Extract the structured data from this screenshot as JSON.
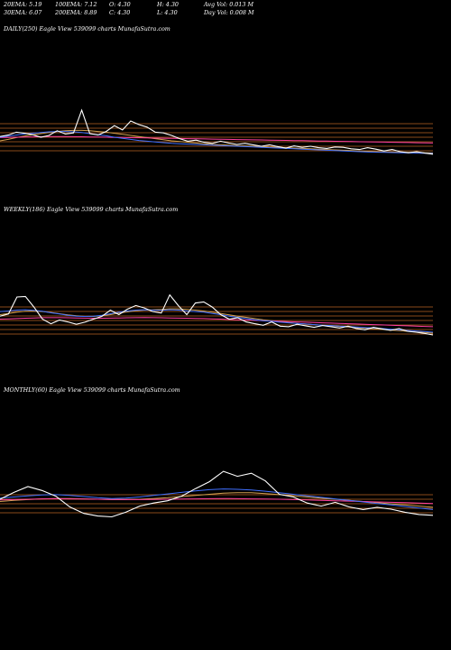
{
  "stats": {
    "ema20": "20EMA: 5.19",
    "ema100": "100EMA: 7.12",
    "open": "O: 4.30",
    "high": "H: 4.30",
    "avgvol": "Avg Vol: 0.013 M",
    "ema30": "30EMA: 6.07",
    "ema200": "200EMA: 8.89",
    "close": "C: 4.30",
    "low": "L: 4.30",
    "dayvol": "Day Vol: 0.008 M"
  },
  "panels": {
    "daily": {
      "label": "DAILY(250) Eagle   View  539099 charts MunafaSutra.com"
    },
    "weekly": {
      "label": "WEEKLY(186) Eagle   View  539099 charts MunafaSutra.com"
    },
    "monthly": {
      "label": "MONTHLY(60) Eagle   View  539099 charts MunafaSutra.com"
    }
  },
  "colors": {
    "background": "#000000",
    "price": "#ffffff",
    "ema_blue": "#3f6fff",
    "ema_pink": "#ff3fa0",
    "ema_orange": "#d2a050",
    "band": "#8a4a1a"
  },
  "chart_data": [
    {
      "type": "line",
      "panel": "daily",
      "series": [
        {
          "values": [
            9.2,
            9.6,
            10.4,
            10.1,
            9.7,
            9.0,
            9.5,
            10.8,
            9.9,
            10.2,
            16.5,
            10.0,
            9.6,
            10.6,
            12.2,
            11.0,
            13.5,
            12.5,
            11.8,
            10.4,
            10.2,
            9.5,
            8.6,
            7.9,
            8.2,
            7.6,
            7.3,
            7.9,
            7.4,
            7.0,
            7.3,
            6.9,
            6.5,
            6.9,
            6.4,
            6.0,
            6.6,
            6.2,
            6.5,
            6.1,
            5.9,
            6.3,
            6.2,
            5.8,
            5.6,
            6.1,
            5.7,
            5.2,
            5.6,
            5.0,
            4.7,
            5.0,
            4.6,
            4.3
          ]
        },
        {
          "values": [
            9.0,
            9.3,
            9.6,
            9.9,
            10.1,
            10.3,
            10.5,
            10.6,
            10.6,
            10.5,
            10.3,
            10.0,
            9.7,
            9.4,
            9.0,
            8.7,
            8.4,
            8.1,
            7.9,
            7.7,
            7.5,
            7.3,
            7.2,
            7.1,
            7.0,
            6.9,
            6.8,
            6.7,
            6.6,
            6.5,
            6.4,
            6.3,
            6.2,
            6.1,
            6.0,
            5.9,
            5.8,
            5.7,
            5.6,
            5.5,
            5.4,
            5.3,
            5.2,
            5.1,
            5.0,
            4.9,
            4.85,
            4.8,
            4.75,
            4.7,
            4.65,
            4.6,
            4.55,
            4.5
          ]
        },
        {
          "values": [
            8.9,
            8.95,
            9.0,
            9.05,
            9.1,
            9.15,
            9.2,
            9.2,
            9.18,
            9.15,
            9.12,
            9.08,
            9.04,
            9.0,
            8.96,
            8.92,
            8.88,
            8.84,
            8.8,
            8.76,
            8.72,
            8.68,
            8.64,
            8.6,
            8.56,
            8.52,
            8.48,
            8.44,
            8.4,
            8.36,
            8.32,
            8.28,
            8.24,
            8.2,
            8.16,
            8.12,
            8.08,
            8.04,
            8.0,
            7.96,
            7.92,
            7.88,
            7.84,
            7.8,
            7.76,
            7.72,
            7.68,
            7.64,
            7.6,
            7.56,
            7.52,
            7.48,
            7.44,
            7.4
          ]
        },
        {
          "values": [
            8.0,
            8.4,
            8.9,
            9.3,
            9.7,
            10.0,
            10.3,
            10.6,
            10.8,
            10.9,
            10.9,
            10.8,
            10.6,
            10.4,
            10.1,
            9.8,
            9.5,
            9.2,
            8.9,
            8.6,
            8.3,
            8.0,
            7.8,
            7.6,
            7.4,
            7.2,
            7.0,
            6.9,
            6.8,
            6.7,
            6.6,
            6.5,
            6.4,
            6.3,
            6.2,
            6.1,
            6.0,
            5.9,
            5.8,
            5.7,
            5.6,
            5.5,
            5.4,
            5.3,
            5.2,
            5.1,
            5.0,
            4.95,
            4.9,
            4.85,
            4.8,
            4.75,
            4.7,
            4.65
          ]
        }
      ]
    },
    {
      "type": "line",
      "panel": "weekly",
      "series": [
        {
          "values": [
            10.5,
            11.2,
            16.8,
            17.0,
            13.5,
            9.5,
            8.0,
            9.2,
            8.6,
            7.8,
            8.5,
            9.5,
            10.4,
            12.5,
            11.0,
            12.8,
            14.0,
            13.2,
            12.0,
            11.5,
            17.5,
            14.0,
            11.0,
            14.8,
            15.2,
            13.5,
            11.0,
            9.5,
            10.0,
            8.6,
            8.0,
            7.5,
            8.6,
            7.2,
            7.0,
            7.8,
            7.3,
            6.8,
            7.4,
            7.0,
            6.6,
            7.2,
            6.4,
            6.0,
            6.8,
            6.3,
            5.8,
            6.4,
            5.5,
            5.2,
            4.8,
            4.3
          ]
        },
        {
          "values": [
            12.0,
            12.2,
            12.5,
            12.6,
            12.4,
            12.1,
            11.6,
            11.2,
            10.8,
            10.5,
            10.4,
            10.5,
            10.8,
            11.3,
            11.8,
            12.2,
            12.5,
            12.6,
            12.5,
            12.4,
            12.6,
            12.5,
            12.2,
            12.0,
            11.8,
            11.4,
            11.0,
            10.5,
            10.1,
            9.7,
            9.3,
            9.0,
            8.8,
            8.5,
            8.3,
            8.1,
            7.9,
            7.7,
            7.5,
            7.4,
            7.2,
            7.1,
            6.9,
            6.7,
            6.6,
            6.4,
            6.2,
            6.0,
            5.8,
            5.6,
            5.4,
            5.2
          ]
        },
        {
          "values": [
            9.5,
            9.6,
            9.7,
            9.8,
            9.9,
            10.0,
            10.0,
            10.0,
            9.95,
            9.9,
            9.85,
            9.8,
            9.8,
            9.85,
            9.9,
            9.95,
            10.0,
            10.05,
            10.0,
            9.95,
            9.9,
            9.85,
            9.8,
            9.75,
            9.7,
            9.6,
            9.5,
            9.4,
            9.3,
            9.2,
            9.1,
            9.0,
            8.9,
            8.8,
            8.7,
            8.6,
            8.5,
            8.4,
            8.3,
            8.2,
            8.1,
            8.0,
            7.9,
            7.8,
            7.7,
            7.6,
            7.5,
            7.4,
            7.3,
            7.2,
            7.1,
            7.0
          ]
        },
        {
          "values": [
            11.0,
            11.4,
            11.8,
            12.1,
            12.2,
            12.0,
            11.7,
            11.3,
            10.9,
            10.6,
            10.4,
            10.4,
            10.6,
            11.0,
            11.5,
            11.9,
            12.3,
            12.5,
            12.6,
            12.7,
            12.9,
            12.9,
            12.7,
            12.5,
            12.2,
            11.8,
            11.4,
            10.9,
            10.5,
            10.1,
            9.7,
            9.3,
            9.0,
            8.7,
            8.4,
            8.1,
            7.9,
            7.7,
            7.5,
            7.3,
            7.1,
            6.9,
            6.7,
            6.5,
            6.3,
            6.1,
            5.9,
            5.7,
            5.5,
            5.3,
            5.1,
            4.9
          ]
        }
      ]
    },
    {
      "type": "line",
      "panel": "monthly",
      "series": [
        {
          "values": [
            10.2,
            12.0,
            13.5,
            12.5,
            11.0,
            8.2,
            6.5,
            5.8,
            5.6,
            6.8,
            8.4,
            9.2,
            9.8,
            11.0,
            13.0,
            14.8,
            17.5,
            16.2,
            17.0,
            15.0,
            11.5,
            10.8,
            9.2,
            8.4,
            9.4,
            8.2,
            7.5,
            8.1,
            7.6,
            6.8,
            6.2,
            6.0
          ]
        },
        {
          "values": [
            10.5,
            10.8,
            11.1,
            11.3,
            11.4,
            11.2,
            10.9,
            10.6,
            10.4,
            10.5,
            10.8,
            11.2,
            11.6,
            12.0,
            12.4,
            12.7,
            12.9,
            12.8,
            12.6,
            12.3,
            11.9,
            11.5,
            11.1,
            10.7,
            10.3,
            9.9,
            9.5,
            9.1,
            8.7,
            8.3,
            7.9,
            7.5
          ]
        },
        {
          "values": [
            10.0,
            10.1,
            10.2,
            10.3,
            10.35,
            10.3,
            10.25,
            10.2,
            10.15,
            10.1,
            10.1,
            10.15,
            10.2,
            10.25,
            10.3,
            10.35,
            10.4,
            10.35,
            10.3,
            10.25,
            10.2,
            10.1,
            10.0,
            9.9,
            9.8,
            9.7,
            9.6,
            9.5,
            9.4,
            9.3,
            9.2,
            9.1
          ]
        },
        {
          "values": [
            9.6,
            9.9,
            10.1,
            10.3,
            10.4,
            10.4,
            10.3,
            10.2,
            10.1,
            10.1,
            10.2,
            10.4,
            10.6,
            10.9,
            11.2,
            11.5,
            11.8,
            11.9,
            11.9,
            11.7,
            11.4,
            11.1,
            10.8,
            10.5,
            10.2,
            9.9,
            9.6,
            9.3,
            9.0,
            8.7,
            8.4,
            8.1
          ]
        }
      ]
    }
  ]
}
